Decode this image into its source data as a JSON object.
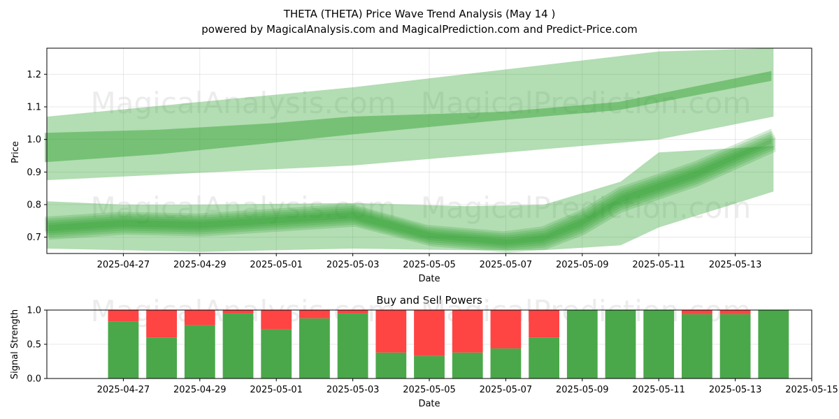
{
  "title": "THETA (THETA) Price Wave Trend Analysis (May 14 )",
  "subtitle": "powered by MagicalAnalysis.com and MagicalPrediction.com and Predict-Price.com",
  "watermarks": [
    "MagicalAnalysis.com",
    "MagicalPrediction.com"
  ],
  "colors": {
    "green": "#2ca02c",
    "buy": "#4aa84a",
    "sell": "#ff4444"
  },
  "chart_data": [
    {
      "type": "area",
      "xlabel": "Date",
      "ylabel": "Price",
      "xlim": [
        "2025-04-25",
        "2025-05-15"
      ],
      "ylim": [
        0.65,
        1.28
      ],
      "x_ticks": [
        "2025-04-27",
        "2025-04-29",
        "2025-05-01",
        "2025-05-03",
        "2025-05-05",
        "2025-05-07",
        "2025-05-09",
        "2025-05-11",
        "2025-05-13"
      ],
      "y_ticks": [
        0.7,
        0.8,
        0.9,
        1.0,
        1.1,
        1.2
      ],
      "grid": true,
      "series": [
        {
          "role": "upper-wide-band",
          "x": [
            "2025-04-25",
            "2025-05-03",
            "2025-05-11",
            "2025-05-14"
          ],
          "upper": [
            1.07,
            1.16,
            1.27,
            1.28
          ],
          "lower": [
            0.875,
            0.92,
            1.0,
            1.07
          ]
        },
        {
          "role": "upper-trend-line",
          "x": [
            "2025-04-25",
            "2025-04-28",
            "2025-05-01",
            "2025-05-03",
            "2025-05-07",
            "2025-05-10",
            "2025-05-14"
          ],
          "upper": [
            1.02,
            1.03,
            1.05,
            1.07,
            1.085,
            1.115,
            1.21
          ],
          "lower": [
            0.93,
            0.955,
            0.99,
            1.015,
            1.06,
            1.09,
            1.18
          ]
        },
        {
          "role": "lower-wide-band",
          "x": [
            "2025-04-25",
            "2025-04-27",
            "2025-04-29",
            "2025-05-03",
            "2025-05-06",
            "2025-05-08",
            "2025-05-10",
            "2025-05-11",
            "2025-05-14"
          ],
          "upper": [
            0.81,
            0.8,
            0.8,
            0.805,
            0.795,
            0.8,
            0.87,
            0.96,
            0.98
          ],
          "lower": [
            0.665,
            0.66,
            0.655,
            0.665,
            0.66,
            0.66,
            0.675,
            0.73,
            0.84
          ]
        },
        {
          "role": "lower-trend-line",
          "x": [
            "2025-04-25",
            "2025-04-27",
            "2025-04-29",
            "2025-05-01",
            "2025-05-03",
            "2025-05-05",
            "2025-05-07",
            "2025-05-08",
            "2025-05-09",
            "2025-05-10",
            "2025-05-12",
            "2025-05-14"
          ],
          "upper": [
            0.75,
            0.765,
            0.76,
            0.775,
            0.79,
            0.725,
            0.705,
            0.72,
            0.77,
            0.84,
            0.92,
            1.02
          ],
          "lower": [
            0.705,
            0.72,
            0.715,
            0.73,
            0.745,
            0.685,
            0.665,
            0.675,
            0.72,
            0.79,
            0.87,
            0.975
          ]
        }
      ]
    },
    {
      "type": "bar",
      "title": "Buy and Sell Powers",
      "xlabel": "Date",
      "ylabel": "Signal Strength",
      "xlim": [
        "2025-04-25",
        "2025-05-15"
      ],
      "ylim": [
        0,
        1
      ],
      "x_ticks": [
        "2025-04-27",
        "2025-04-29",
        "2025-05-01",
        "2025-05-03",
        "2025-05-05",
        "2025-05-07",
        "2025-05-09",
        "2025-05-11",
        "2025-05-13",
        "2025-05-15"
      ],
      "y_ticks": [
        "0.0",
        "0.5",
        "1.0"
      ],
      "grid": true,
      "categories": [
        "2025-04-27",
        "2025-04-28",
        "2025-04-29",
        "2025-04-30",
        "2025-05-01",
        "2025-05-02",
        "2025-05-03",
        "2025-05-04",
        "2025-05-05",
        "2025-05-06",
        "2025-05-07",
        "2025-05-08",
        "2025-05-09",
        "2025-05-10",
        "2025-05-11",
        "2025-05-12",
        "2025-05-13",
        "2025-05-14"
      ],
      "series": [
        {
          "role": "buy",
          "values": [
            0.83,
            0.6,
            0.78,
            0.95,
            0.72,
            0.88,
            0.95,
            0.38,
            0.33,
            0.38,
            0.44,
            0.6,
            1.0,
            1.0,
            1.0,
            0.94,
            0.94,
            1.0
          ]
        },
        {
          "role": "sell",
          "values": [
            0.17,
            0.4,
            0.22,
            0.05,
            0.28,
            0.12,
            0.05,
            0.62,
            0.67,
            0.62,
            0.56,
            0.4,
            0.0,
            0.0,
            0.0,
            0.06,
            0.06,
            0.0
          ]
        }
      ]
    }
  ]
}
